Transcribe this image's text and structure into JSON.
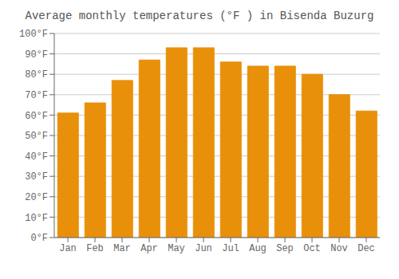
{
  "chart_data": {
    "type": "bar",
    "title": "Average monthly temperatures (°F ) in Bisenda Buzurg",
    "categories": [
      "Jan",
      "Feb",
      "Mar",
      "Apr",
      "May",
      "Jun",
      "Jul",
      "Aug",
      "Sep",
      "Oct",
      "Nov",
      "Dec"
    ],
    "values": [
      61,
      66,
      77,
      87,
      93,
      93,
      86,
      84,
      84,
      80,
      70,
      62
    ],
    "color": "#E8900A",
    "ylim": [
      0,
      100
    ],
    "yticks": [
      {
        "value": 0,
        "label": "0°F"
      },
      {
        "value": 10,
        "label": "10°F"
      },
      {
        "value": 20,
        "label": "20°F"
      },
      {
        "value": 30,
        "label": "30°F"
      },
      {
        "value": 40,
        "label": "40°F"
      },
      {
        "value": 50,
        "label": "50°F"
      },
      {
        "value": 60,
        "label": "60°F"
      },
      {
        "value": 70,
        "label": "70°F"
      },
      {
        "value": 80,
        "label": "80°F"
      },
      {
        "value": 90,
        "label": "90°F"
      },
      {
        "value": 100,
        "label": "100°F"
      }
    ],
    "grid": true
  }
}
